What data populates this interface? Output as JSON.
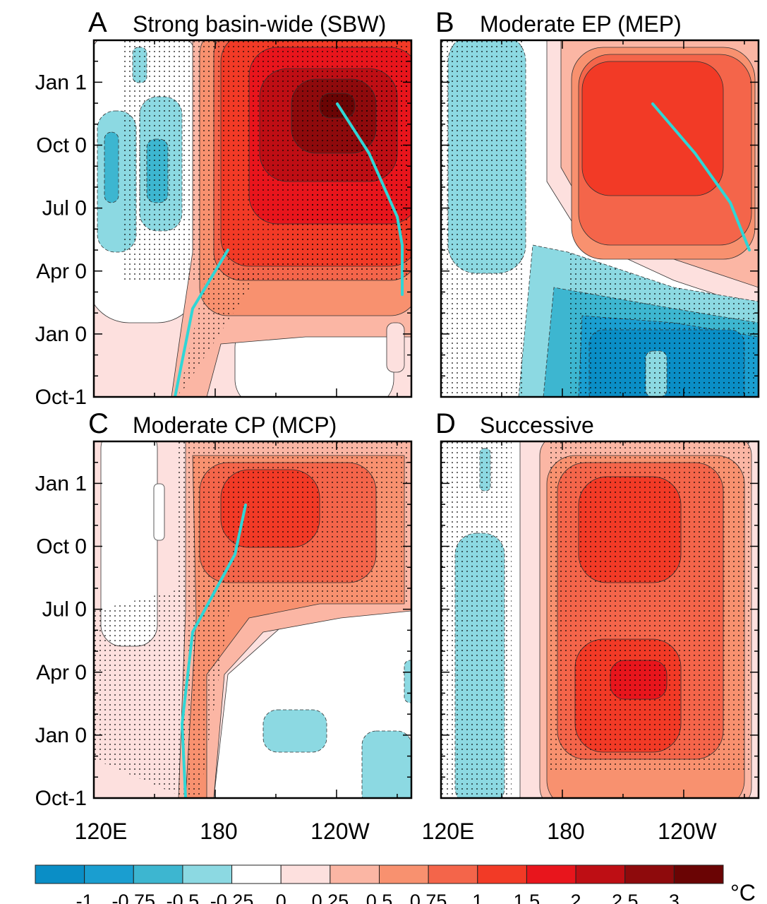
{
  "chart_data": {
    "type": "heatmap",
    "unit": "°C",
    "y_ticks": [
      "Jan 1",
      "Oct 0",
      "Jul 0",
      "Apr 0",
      "Jan 0",
      "Oct-1"
    ],
    "x_ticks": [
      "120E",
      "180",
      "120W"
    ],
    "panels": [
      {
        "letter": "A",
        "title": "Strong basin-wide (SBW)"
      },
      {
        "letter": "B",
        "title": "Moderate EP (MEP)"
      },
      {
        "letter": "C",
        "title": "Moderate CP (MCP)"
      },
      {
        "letter": "D",
        "title": "Successive"
      }
    ],
    "colorbar": {
      "levels": [
        "-1",
        "-0.75",
        "-0.5",
        "-0.25",
        "0",
        "0.25",
        "0.5",
        "0.75",
        "1",
        "1.5",
        "2",
        "2.5",
        "3"
      ],
      "colors": [
        "#0a8ec6",
        "#1a9ed0",
        "#3db6d0",
        "#8cd9e2",
        "#ffffff",
        "#fde0de",
        "#fbb6a4",
        "#f8916f",
        "#f4654a",
        "#f23a26",
        "#e8151c",
        "#be0e14",
        "#8e0a0c",
        "#6a0404"
      ]
    },
    "line_color": "#2fd6d6"
  }
}
